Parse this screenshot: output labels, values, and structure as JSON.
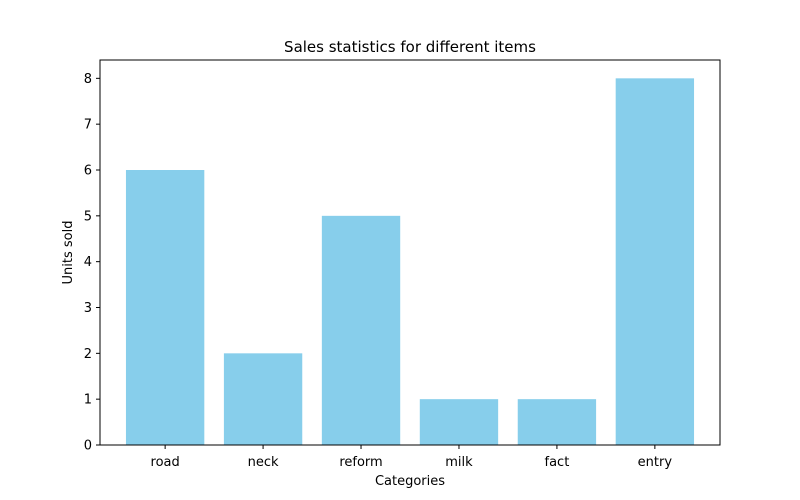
{
  "chart_data": {
    "type": "bar",
    "title": "Sales statistics for different items",
    "xlabel": "Categories",
    "ylabel": "Units sold",
    "categories": [
      "road",
      "neck",
      "reform",
      "milk",
      "fact",
      "entry"
    ],
    "values": [
      6,
      2,
      5,
      1,
      1,
      8
    ],
    "ylim": [
      0,
      8.4
    ],
    "yticks": [
      0,
      1,
      2,
      3,
      4,
      5,
      6,
      7,
      8
    ],
    "bar_color": "#87CEEB",
    "grid": false,
    "legend": "none"
  }
}
